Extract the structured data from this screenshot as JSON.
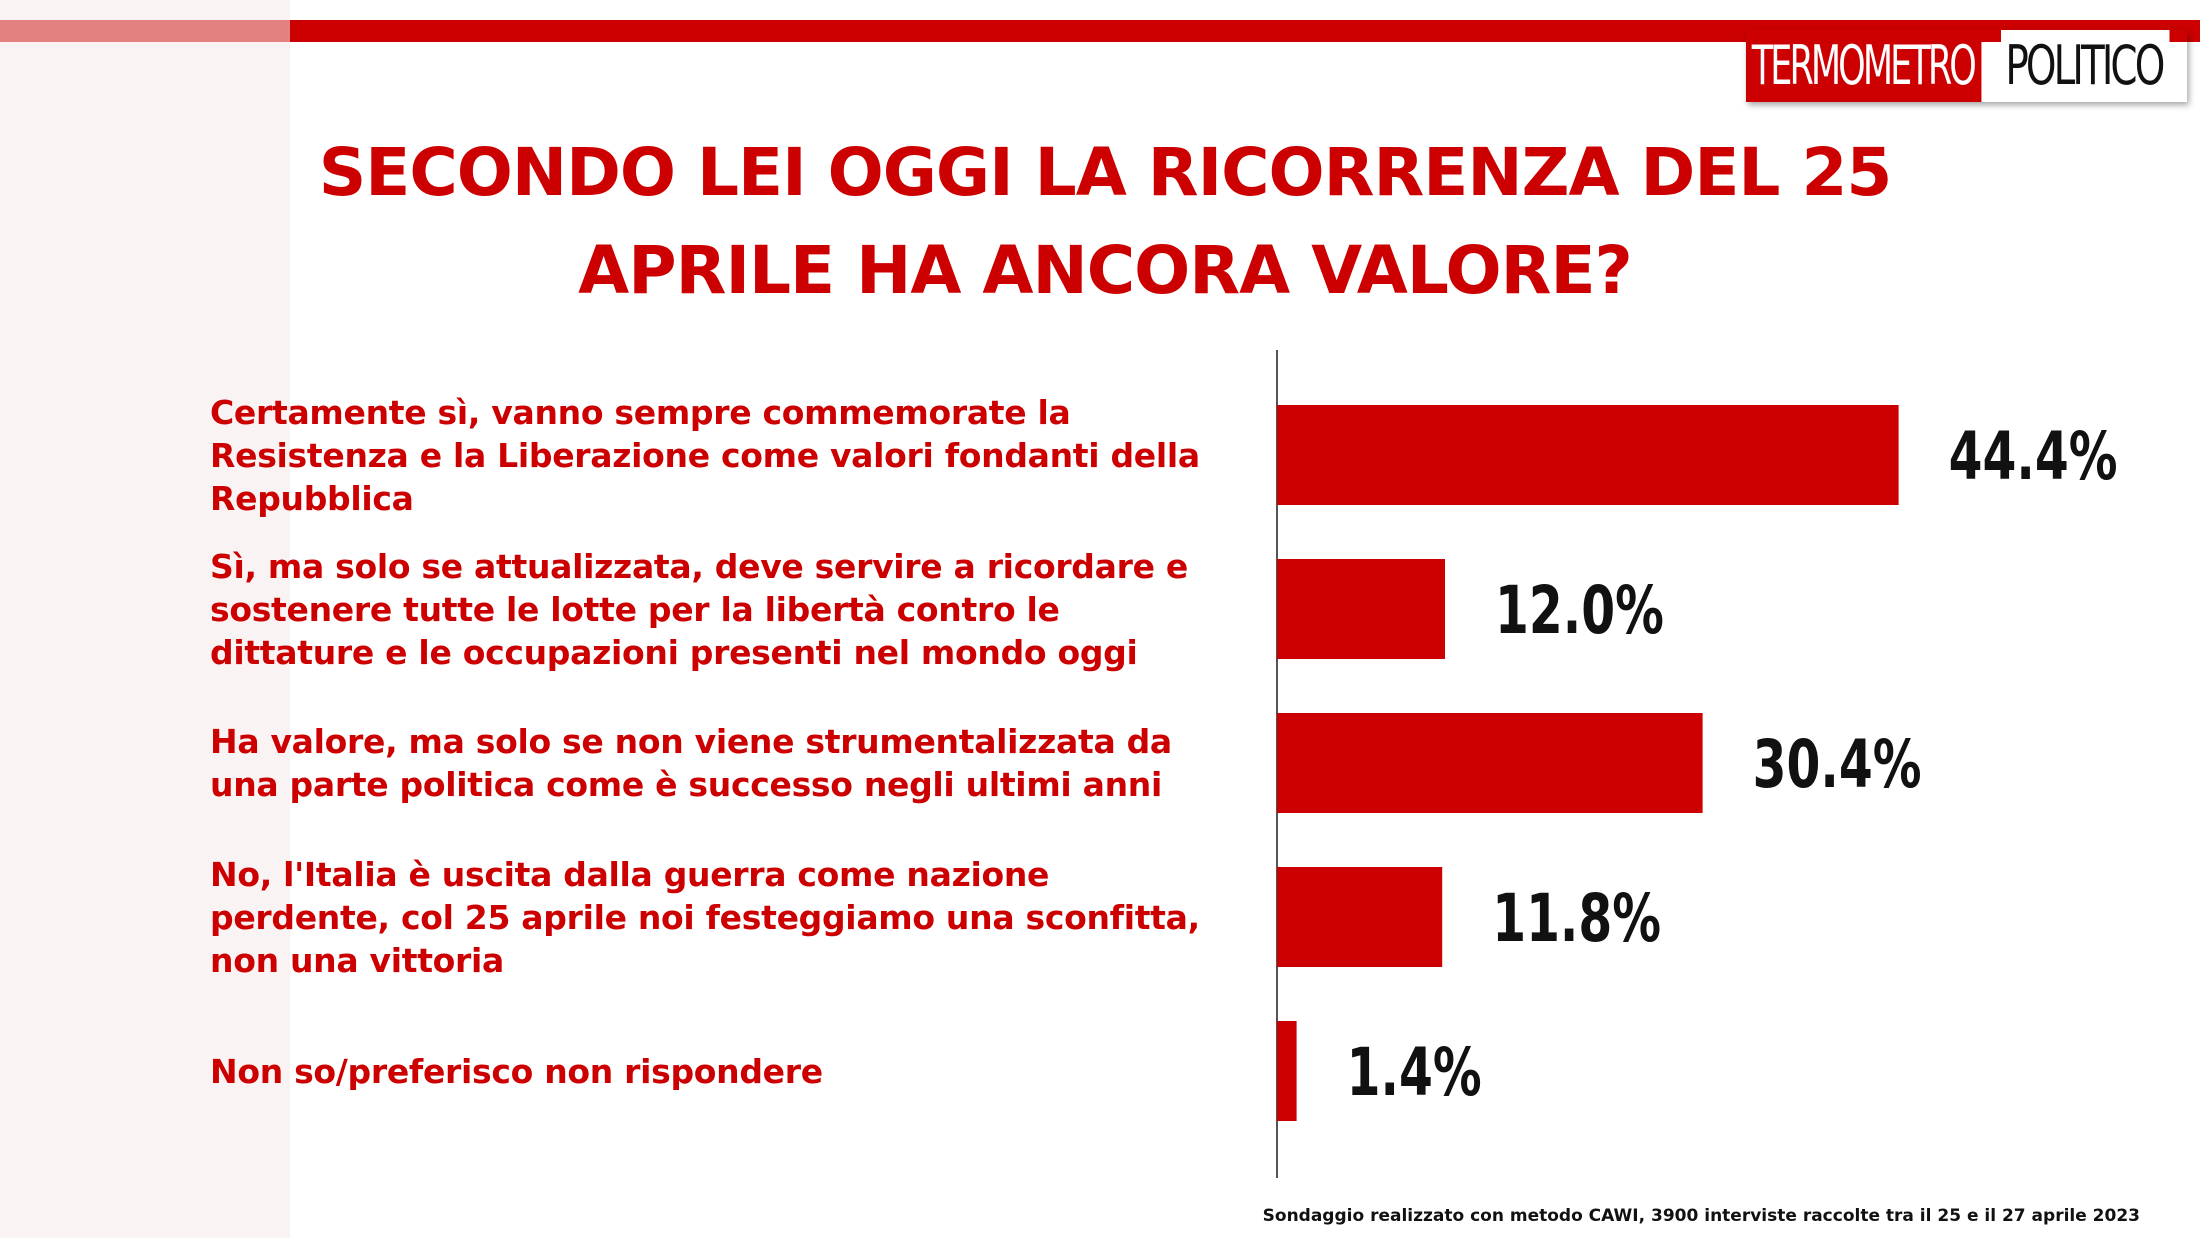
{
  "logo": {
    "part1": "TERMOMETRO",
    "part2": "POLITICO"
  },
  "title_line1": "SECONDO LEI OGGI LA RICORRENZA DEL 25",
  "title_line2": "APRILE HA ANCORA VALORE?",
  "footer": "Sondaggio realizzato con metodo CAWI, 3900 interviste raccolte tra il 25 e il 27 aprile 2023",
  "colors": {
    "accent": "#cc0000",
    "value_text": "#111111",
    "axis": "#555555"
  },
  "chart_data": {
    "type": "bar",
    "orientation": "horizontal",
    "categories": [
      "Certamente sì, vanno sempre commemorate la Resistenza e la Liberazione come valori fondanti della Repubblica",
      "Sì, ma solo se attualizzata, deve servire a ricordare e sostenere tutte le lotte per la libertà  contro le dittature e le occupazioni presenti nel mondo oggi",
      "Ha valore, ma solo se non viene strumentalizzata da una parte politica come è successo negli ultimi anni",
      "No, l'Italia è uscita dalla guerra come nazione perdente, col 25 aprile noi festeggiamo una sconfitta, non una vittoria",
      "Non so/preferisco non rispondere"
    ],
    "label_lines": [
      [
        "Certamente sì, vanno sempre commemorate la",
        "Resistenza e la Liberazione come valori fondanti della",
        "Repubblica"
      ],
      [
        "Sì, ma solo se attualizzata, deve servire a ricordare e",
        "sostenere tutte le lotte per la libertà  contro le",
        "dittature e le occupazioni presenti nel mondo oggi"
      ],
      [
        "Ha valore, ma solo se non viene strumentalizzata da",
        "una parte politica come è successo negli ultimi anni"
      ],
      [
        "No, l'Italia è uscita dalla guerra come nazione",
        "perdente, col 25 aprile noi festeggiamo una sconfitta,",
        "non una vittoria"
      ],
      [
        "Non so/preferisco non rispondere"
      ]
    ],
    "values": [
      44.4,
      12.0,
      30.4,
      11.8,
      1.4
    ],
    "value_labels": [
      "44.4%",
      "12.0%",
      "30.4%",
      "11.8%",
      "1.4%"
    ],
    "xlim": [
      0,
      60
    ],
    "grid": false
  }
}
